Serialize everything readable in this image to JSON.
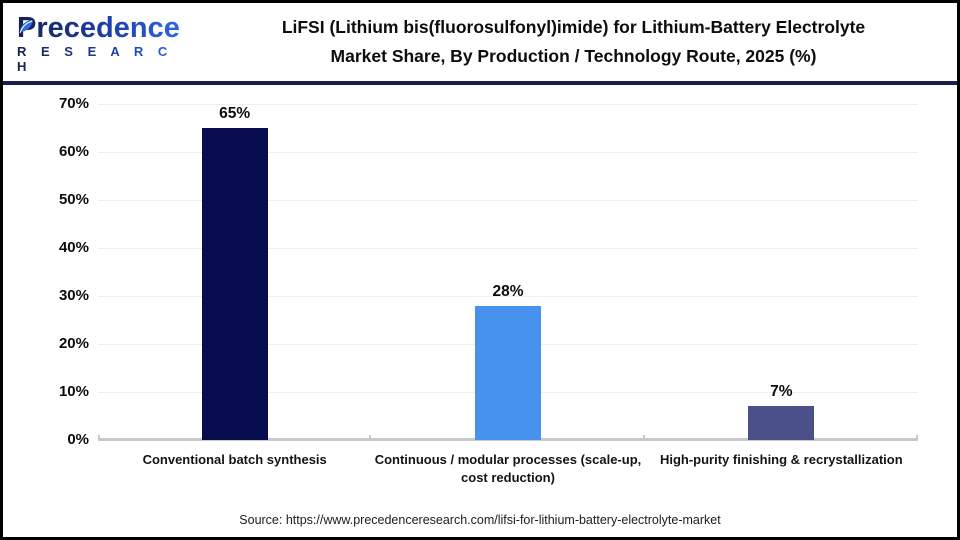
{
  "header": {
    "logo_name": "Precedence",
    "logo_subtitle": "R E S E A R C H",
    "title_line1": "LiFSI (Lithium bis(fluorosulfonyl)imide) for Lithium-Battery Electrolyte",
    "title_line2": "Market Share, By Production / Technology Route, 2025 (%)"
  },
  "chart_data": {
    "type": "bar",
    "title": "LiFSI (Lithium bis(fluorosulfonyl)imide) for Lithium-Battery Electrolyte Market Share, By Production / Technology Route, 2025 (%)",
    "categories": [
      "Conventional batch synthesis",
      "Continuous / modular processes (scale-up, cost reduction)",
      "High-purity finishing & recrystallization"
    ],
    "values": [
      65,
      28,
      7
    ],
    "value_labels": [
      "65%",
      "28%",
      "7%"
    ],
    "bar_colors": [
      "#070d4e",
      "#4792ef",
      "#4b4f8a"
    ],
    "ylim": [
      0,
      70
    ],
    "yticks": [
      0,
      10,
      20,
      30,
      40,
      50,
      60,
      70
    ],
    "ytick_labels": [
      "0%",
      "10%",
      "20%",
      "30%",
      "40%",
      "50%",
      "60%",
      "70%"
    ],
    "xlabel": "",
    "ylabel": "",
    "grid": "horizontal-light",
    "legend": "none"
  },
  "footer": {
    "source": "Source: https://www.precedenceresearch.com/lifsi-for-lithium-battery-electrolyte-market"
  },
  "colors": {
    "header_rule": "#181f4e",
    "baseline": "#c9c9c9",
    "gridline": "#efefef",
    "border": "#000000"
  }
}
